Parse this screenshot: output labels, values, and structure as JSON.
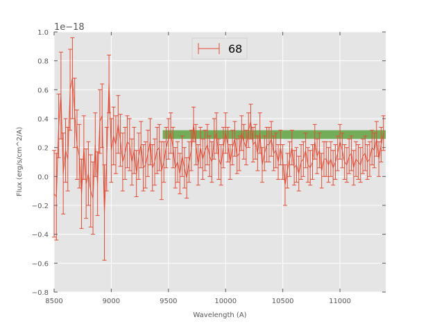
{
  "chart_data": {
    "type": "line",
    "xlabel": "Wavelength (A)",
    "ylabel": "Flux (erg/s/cm^2/A)",
    "y_offset_label": "1e−18",
    "xlim": [
      8500,
      11400
    ],
    "ylim": [
      -0.8,
      1.0
    ],
    "x_ticks": [
      8500,
      9000,
      9500,
      10000,
      10500,
      11000
    ],
    "x_tick_labels": [
      "8500",
      "9000",
      "9500",
      "10000",
      "10500",
      "11000"
    ],
    "y_ticks": [
      -0.8,
      -0.6,
      -0.4,
      -0.2,
      0.0,
      0.2,
      0.4,
      0.6,
      0.8,
      1.0
    ],
    "y_tick_labels": [
      "−0.8",
      "−0.6",
      "−0.4",
      "−0.2",
      "0.0",
      "0.2",
      "0.4",
      "0.6",
      "0.8",
      "1.0"
    ],
    "grid": true,
    "legend_position": "top-center",
    "colors": {
      "series": "#e24a33",
      "band": "#4c9a2a",
      "background": "#e5e5e5",
      "grid": "#ffffff"
    },
    "band": {
      "x_start": 9450,
      "x_end": 11400,
      "y_low": 0.26,
      "y_high": 0.32
    },
    "series": [
      {
        "name": "68",
        "x": [
          8500,
          8520,
          8540,
          8560,
          8580,
          8600,
          8620,
          8640,
          8660,
          8680,
          8700,
          8720,
          8740,
          8760,
          8780,
          8800,
          8820,
          8840,
          8860,
          8880,
          8900,
          8920,
          8940,
          8960,
          8980,
          9000,
          9020,
          9040,
          9060,
          9080,
          9100,
          9120,
          9140,
          9160,
          9180,
          9200,
          9220,
          9240,
          9260,
          9280,
          9300,
          9320,
          9340,
          9360,
          9380,
          9400,
          9420,
          9440,
          9460,
          9480,
          9500,
          9520,
          9540,
          9560,
          9580,
          9600,
          9620,
          9640,
          9660,
          9680,
          9700,
          9720,
          9740,
          9760,
          9780,
          9800,
          9820,
          9840,
          9860,
          9880,
          9900,
          9920,
          9940,
          9960,
          9980,
          10000,
          10020,
          10040,
          10060,
          10080,
          10100,
          10120,
          10140,
          10160,
          10180,
          10200,
          10220,
          10240,
          10260,
          10280,
          10300,
          10320,
          10340,
          10360,
          10380,
          10400,
          10420,
          10440,
          10460,
          10480,
          10500,
          10520,
          10540,
          10560,
          10580,
          10600,
          10620,
          10640,
          10660,
          10680,
          10700,
          10720,
          10740,
          10760,
          10780,
          10800,
          10820,
          10840,
          10860,
          10880,
          10900,
          10920,
          10940,
          10960,
          10980,
          11000,
          11020,
          11040,
          11060,
          11080,
          11100,
          11120,
          11140,
          11160,
          11180,
          11200,
          11220,
          11240,
          11260,
          11280,
          11300,
          11320,
          11340,
          11360,
          11380
        ],
        "y": [
          -0.12,
          -0.14,
          0.35,
          0.56,
          0.02,
          0.18,
          0.12,
          0.6,
          0.68,
          0.44,
          0.22,
          0.14,
          -0.12,
          0.2,
          -0.05,
          0.02,
          -0.1,
          -0.15,
          0.22,
          -0.05,
          0.38,
          0.42,
          -0.25,
          0.12,
          0.64,
          0.18,
          0.28,
          0.22,
          0.36,
          0.25,
          0.1,
          0.16,
          0.24,
          0.22,
          0.1,
          0.18,
          0.02,
          0.14,
          0.22,
          0.06,
          0.08,
          0.16,
          0.24,
          0.06,
          0.1,
          0.18,
          0.2,
          0.04,
          0.1,
          0.2,
          0.26,
          0.3,
          0.2,
          0.06,
          0.1,
          0.02,
          0.14,
          0.06,
          -0.01,
          0.1,
          0.18,
          0.36,
          0.22,
          0.08,
          0.2,
          0.12,
          0.18,
          0.22,
          0.14,
          0.1,
          0.26,
          0.3,
          0.12,
          0.08,
          0.2,
          0.3,
          0.22,
          0.1,
          0.2,
          0.26,
          0.14,
          0.16,
          0.3,
          0.24,
          0.2,
          0.32,
          0.38,
          0.22,
          0.24,
          0.16,
          0.3,
          0.08,
          0.16,
          0.22,
          0.22,
          0.26,
          0.16,
          0.18,
          0.1,
          0.2,
          0.1,
          -0.06,
          0.04,
          0.12,
          0.2,
          0.06,
          0.08,
          0.02,
          0.1,
          0.12,
          0.18,
          0.08,
          0.06,
          0.1,
          0.24,
          0.14,
          0.18,
          0.04,
          0.12,
          0.12,
          0.08,
          0.12,
          0.06,
          0.1,
          0.16,
          0.24,
          0.18,
          0.1,
          0.08,
          0.14,
          0.16,
          0.06,
          0.12,
          0.1,
          0.08,
          0.14,
          0.16,
          0.1,
          0.12,
          0.2,
          0.18,
          0.26,
          0.12,
          0.22,
          0.3
        ],
        "yerr": [
          0.3,
          0.3,
          0.22,
          0.3,
          0.28,
          0.22,
          0.22,
          0.28,
          0.28,
          0.24,
          0.24,
          0.22,
          0.24,
          0.22,
          0.24,
          0.22,
          0.25,
          0.25,
          0.22,
          0.22,
          0.22,
          0.22,
          0.33,
          0.22,
          0.2,
          0.22,
          0.2,
          0.2,
          0.2,
          0.18,
          0.2,
          0.18,
          0.18,
          0.18,
          0.16,
          0.16,
          0.16,
          0.16,
          0.16,
          0.16,
          0.16,
          0.16,
          0.16,
          0.16,
          0.16,
          0.16,
          0.16,
          0.2,
          0.14,
          0.14,
          0.14,
          0.14,
          0.14,
          0.14,
          0.14,
          0.14,
          0.14,
          0.14,
          0.14,
          0.14,
          0.14,
          0.12,
          0.14,
          0.14,
          0.14,
          0.14,
          0.14,
          0.14,
          0.14,
          0.14,
          0.14,
          0.14,
          0.14,
          0.14,
          0.14,
          0.14,
          0.12,
          0.12,
          0.12,
          0.12,
          0.12,
          0.12,
          0.12,
          0.12,
          0.12,
          0.12,
          0.12,
          0.12,
          0.12,
          0.12,
          0.14,
          0.12,
          0.12,
          0.12,
          0.12,
          0.12,
          0.12,
          0.12,
          0.12,
          0.12,
          0.12,
          0.14,
          0.12,
          0.12,
          0.12,
          0.12,
          0.12,
          0.12,
          0.12,
          0.12,
          0.12,
          0.12,
          0.12,
          0.12,
          0.12,
          0.12,
          0.12,
          0.12,
          0.12,
          0.12,
          0.12,
          0.12,
          0.12,
          0.12,
          0.12,
          0.12,
          0.12,
          0.12,
          0.12,
          0.12,
          0.12,
          0.12,
          0.12,
          0.12,
          0.12,
          0.12,
          0.12,
          0.12,
          0.12,
          0.12,
          0.12,
          0.12,
          0.12,
          0.12,
          0.12
        ]
      }
    ]
  }
}
